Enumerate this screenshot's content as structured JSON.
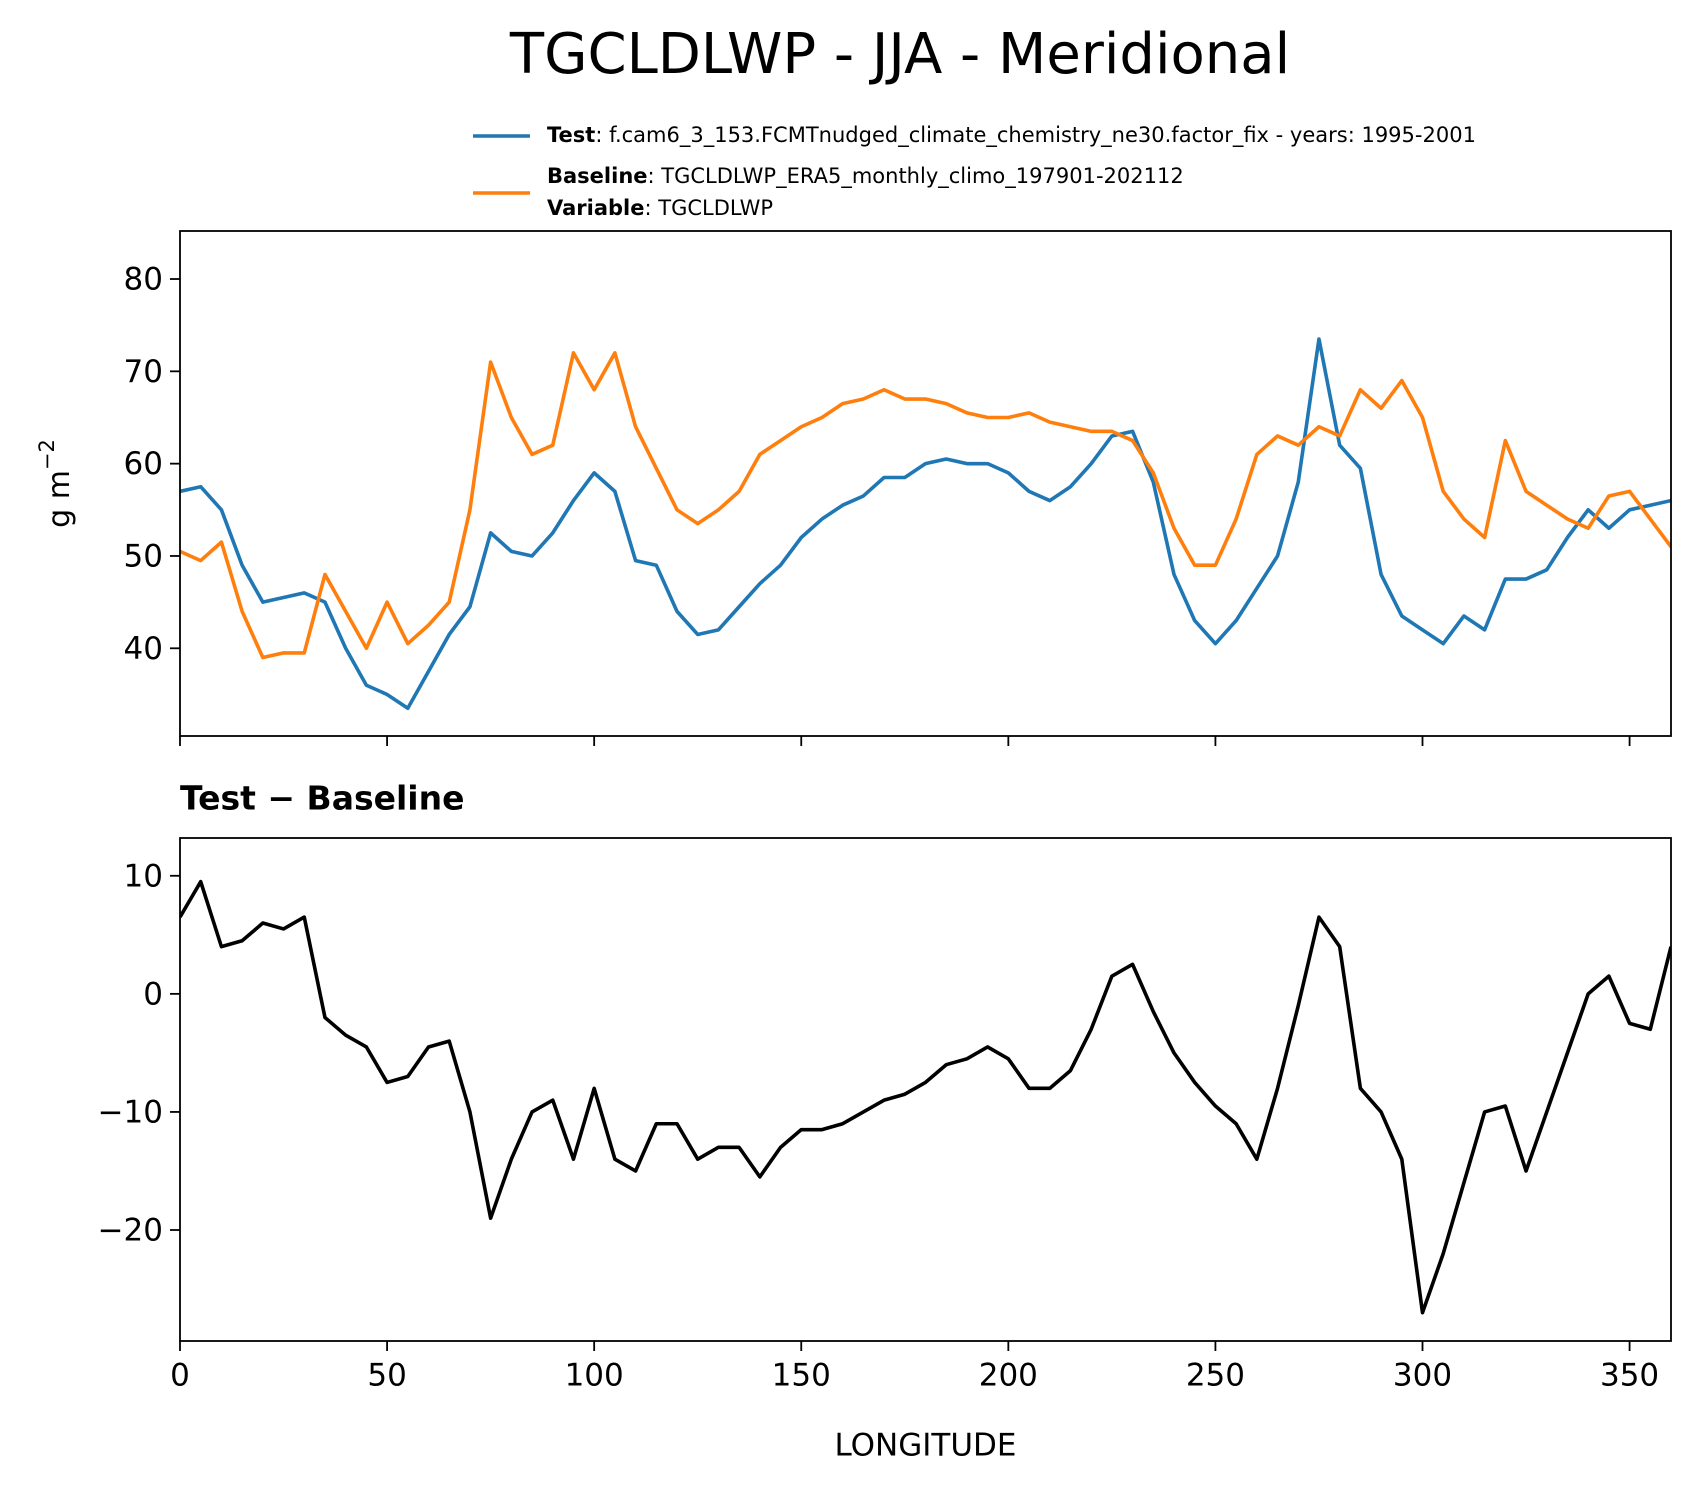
{
  "chart_data": [
    {
      "type": "line",
      "title": "TGCLDLWP - JJA - Meridional",
      "ylabel": "g m",
      "ylabel_sup": "−2",
      "x": [
        0,
        5,
        10,
        15,
        20,
        25,
        30,
        35,
        40,
        45,
        50,
        55,
        60,
        65,
        70,
        75,
        80,
        85,
        90,
        95,
        100,
        105,
        110,
        115,
        120,
        125,
        130,
        135,
        140,
        145,
        150,
        155,
        160,
        165,
        170,
        175,
        180,
        185,
        190,
        195,
        200,
        205,
        210,
        215,
        220,
        225,
        230,
        235,
        240,
        245,
        250,
        255,
        260,
        265,
        270,
        275,
        280,
        285,
        290,
        295,
        300,
        305,
        310,
        315,
        320,
        325,
        330,
        335,
        340,
        345,
        350,
        355,
        360
      ],
      "series": [
        {
          "name": "Test",
          "detail": ": f.cam6_3_153.FCMTnudged_climate_chemistry_ne30.factor_fix - years: 1995-2001",
          "color": "#1f77b4",
          "values": [
            57,
            57.5,
            55,
            49,
            45,
            45.5,
            46,
            45,
            40,
            36,
            35,
            33.5,
            37.5,
            41.5,
            44.5,
            52.5,
            50.5,
            50,
            52.5,
            56,
            59,
            57,
            49.5,
            49,
            44,
            41.5,
            42,
            44.5,
            47,
            49,
            52,
            54,
            55.5,
            56.5,
            58.5,
            58.5,
            60,
            60.5,
            60,
            60,
            59,
            57,
            56,
            57.5,
            60,
            63,
            63.5,
            58,
            48,
            43,
            40.5,
            43,
            46.5,
            50,
            58,
            73.5,
            62,
            59.5,
            48,
            43.5,
            42,
            40.5,
            43.5,
            42,
            47.5,
            47.5,
            48.5,
            52,
            55,
            53,
            55,
            55.5,
            56
          ]
        },
        {
          "name": "Baseline",
          "detail": ": TGCLDLWP_ERA5_monthly_climo_197901-202112",
          "color": "#ff7f0e",
          "values": [
            50.5,
            49.5,
            51.5,
            44,
            39,
            39.5,
            39.5,
            48,
            44,
            40,
            45,
            40.5,
            42.5,
            45,
            55,
            71,
            65,
            61,
            62,
            72,
            68,
            72,
            64,
            59.5,
            55,
            53.5,
            55,
            57,
            61,
            62.5,
            64,
            65,
            66.5,
            67,
            68,
            67,
            67,
            66.5,
            65.5,
            65,
            65,
            65.5,
            64.5,
            64,
            63.5,
            63.5,
            62.5,
            59,
            53,
            49,
            49,
            54,
            61,
            63,
            62,
            64,
            63,
            68,
            66,
            69,
            65,
            57,
            54,
            52,
            62.5,
            57,
            55.5,
            54,
            53,
            56.5,
            57,
            54,
            51
          ]
        }
      ],
      "legend_extra": {
        "name": "Variable",
        "detail": ": TGCLDLWP"
      },
      "xlim": [
        0,
        360
      ],
      "xticks": [
        0,
        50,
        100,
        150,
        200,
        250,
        300,
        350
      ],
      "xticklabels": false,
      "ylim": [
        30.5,
        85.2
      ],
      "yticks": [
        40,
        50,
        60,
        70,
        80
      ]
    },
    {
      "type": "line",
      "title": "Test − Baseline",
      "xlabel": "LONGITUDE",
      "x": [
        0,
        5,
        10,
        15,
        20,
        25,
        30,
        35,
        40,
        45,
        50,
        55,
        60,
        65,
        70,
        75,
        80,
        85,
        90,
        95,
        100,
        105,
        110,
        115,
        120,
        125,
        130,
        135,
        140,
        145,
        150,
        155,
        160,
        165,
        170,
        175,
        180,
        185,
        190,
        195,
        200,
        205,
        210,
        215,
        220,
        225,
        230,
        235,
        240,
        245,
        250,
        255,
        260,
        265,
        270,
        275,
        280,
        285,
        290,
        295,
        300,
        305,
        310,
        315,
        320,
        325,
        330,
        335,
        340,
        345,
        350,
        355,
        360
      ],
      "series": [
        {
          "color": "#000000",
          "values": [
            6.5,
            9.5,
            4,
            4.5,
            6,
            5.5,
            6.5,
            -2,
            -3.5,
            -4.5,
            -7.5,
            -7,
            -4.5,
            -4,
            -10,
            -19,
            -14,
            -10,
            -9,
            -14,
            -8,
            -14,
            -15,
            -11,
            -11,
            -14,
            -13,
            -13,
            -15.5,
            -13,
            -11.5,
            -11.5,
            -11,
            -10,
            -9,
            -8.5,
            -7.5,
            -6,
            -5.5,
            -4.5,
            -5.5,
            -8,
            -8,
            -6.5,
            -3,
            1.5,
            2.5,
            -1.5,
            -5,
            -7.5,
            -9.5,
            -11,
            -14,
            -8,
            -1,
            6.5,
            4,
            -8,
            -10,
            -14,
            -27,
            -22,
            -16,
            -10,
            -9.5,
            -15,
            -10,
            -5,
            0,
            1.5,
            -2.5,
            -3,
            4
          ]
        }
      ],
      "xlim": [
        0,
        360
      ],
      "xticks": [
        0,
        50,
        100,
        150,
        200,
        250,
        300,
        350
      ],
      "xticklabels": true,
      "ylim": [
        -29.4,
        13.2
      ],
      "yticks": [
        {
          "value": -20,
          "label": "−20"
        },
        {
          "value": -10,
          "label": "−10"
        },
        0,
        10
      ]
    }
  ]
}
